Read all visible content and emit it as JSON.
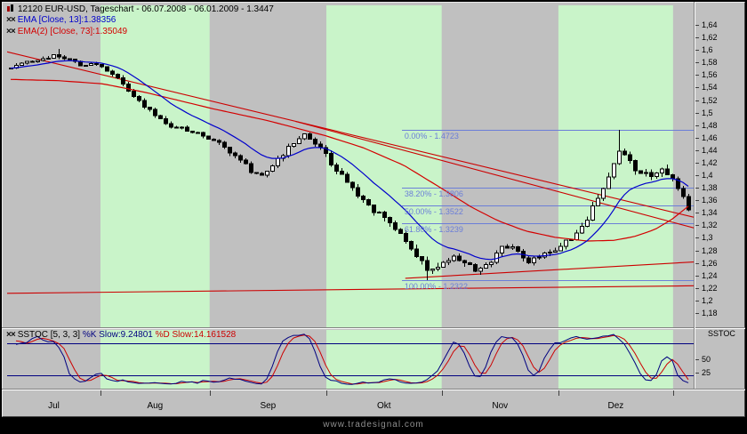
{
  "header": {
    "line1": "12120  EUR-USD, Tageschart - 06.07.2008 - 06.01.2009 - 1.3447",
    "ema1": "EMA [Close, 13]:1.38356",
    "ema2": "EMA(2) [Close, 73]:1.35049"
  },
  "stoch_header": {
    "name": "SSTOC [5, 3, 3] ",
    "k": "%K Slow:9.24801 ",
    "d": "%D Slow:14.161528"
  },
  "icons": {
    "indicator_glyph": "××"
  },
  "price_axis": {
    "top_value": 1.64,
    "step": 0.02,
    "labels": [
      "1,64",
      "1,62",
      "1,6",
      "1,58",
      "1,56",
      "1,54",
      "1,52",
      "1,5",
      "1,48",
      "1,46",
      "1,44",
      "1,42",
      "1,4",
      "1,38",
      "1,36",
      "1,34",
      "1,32",
      "1,3",
      "1,28",
      "1,26",
      "1,24",
      "1,22",
      "1,2",
      "1,18"
    ]
  },
  "stoch_axis": {
    "title": "SSTOC",
    "labels": [
      {
        "text": "50",
        "value": 50
      },
      {
        "text": "25",
        "value": 25
      }
    ]
  },
  "months": [
    "Jul",
    "Aug",
    "Sep",
    "Okt",
    "Nov",
    "Dez"
  ],
  "watermark": "www.tradesignal.com",
  "colors": {
    "bg": "#c0c0c0",
    "band_green": "#c9f4c9",
    "ema_fast": "#0000cc",
    "ema_slow": "#d40000",
    "trend": "#cc0000",
    "fib": "#6b7ed8",
    "stoch_k": "#000080",
    "stoch_d": "#cc0000",
    "candle_up": "#ffffff",
    "candle_down": "#000000",
    "text": "#000000",
    "watermark": "#8f8f8f"
  },
  "chart_data": {
    "type": "candlestick",
    "instrument": "EUR-USD",
    "timeframe": "Tageschart",
    "period": "06.07.2008 - 06.01.2009",
    "last_close": 1.3447,
    "ylim": [
      1.17,
      1.655
    ],
    "candle_count": 128,
    "price_path": [
      [
        0,
        1.571
      ],
      [
        0.016,
        1.576
      ],
      [
        0.035,
        1.584
      ],
      [
        0.054,
        1.589
      ],
      [
        0.07,
        1.592
      ],
      [
        0.087,
        1.583
      ],
      [
        0.106,
        1.576
      ],
      [
        0.126,
        1.578
      ],
      [
        0.136,
        1.572
      ],
      [
        0.158,
        1.556
      ],
      [
        0.177,
        1.532
      ],
      [
        0.197,
        1.507
      ],
      [
        0.216,
        1.496
      ],
      [
        0.236,
        1.478
      ],
      [
        0.255,
        1.473
      ],
      [
        0.275,
        1.468
      ],
      [
        0.295,
        1.458
      ],
      [
        0.313,
        1.446
      ],
      [
        0.333,
        1.428
      ],
      [
        0.352,
        1.41
      ],
      [
        0.368,
        1.396
      ],
      [
        0.385,
        1.413
      ],
      [
        0.401,
        1.434
      ],
      [
        0.417,
        1.452
      ],
      [
        0.433,
        1.466
      ],
      [
        0.449,
        1.449
      ],
      [
        0.465,
        1.431
      ],
      [
        0.482,
        1.408
      ],
      [
        0.497,
        1.386
      ],
      [
        0.514,
        1.362
      ],
      [
        0.531,
        1.347
      ],
      [
        0.547,
        1.339
      ],
      [
        0.562,
        1.322
      ],
      [
        0.579,
        1.297
      ],
      [
        0.596,
        1.272
      ],
      [
        0.611,
        1.252
      ],
      [
        0.624,
        1.249
      ],
      [
        0.633,
        1.259
      ],
      [
        0.65,
        1.273
      ],
      [
        0.666,
        1.262
      ],
      [
        0.683,
        1.249
      ],
      [
        0.699,
        1.256
      ],
      [
        0.715,
        1.271
      ],
      [
        0.731,
        1.289
      ],
      [
        0.747,
        1.276
      ],
      [
        0.764,
        1.263
      ],
      [
        0.78,
        1.268
      ],
      [
        0.803,
        1.283
      ],
      [
        0.819,
        1.293
      ],
      [
        0.834,
        1.306
      ],
      [
        0.851,
        1.331
      ],
      [
        0.868,
        1.369
      ],
      [
        0.883,
        1.401
      ],
      [
        0.896,
        1.443
      ],
      [
        0.909,
        1.431
      ],
      [
        0.922,
        1.406
      ],
      [
        0.935,
        1.399
      ],
      [
        0.948,
        1.403
      ],
      [
        0.964,
        1.408
      ],
      [
        0.977,
        1.396
      ],
      [
        0.987,
        1.373
      ],
      [
        1,
        1.3447
      ]
    ],
    "volatility_path": [
      [
        0,
        0.0035
      ],
      [
        0.25,
        0.004
      ],
      [
        0.42,
        0.005
      ],
      [
        0.52,
        0.0065
      ],
      [
        0.64,
        0.0075
      ],
      [
        0.75,
        0.0055
      ],
      [
        0.86,
        0.0065
      ],
      [
        0.95,
        0.0075
      ],
      [
        1,
        0.006
      ]
    ],
    "wick_spikes": [
      {
        "f": 0.068,
        "high": 1.6015
      },
      {
        "f": 0.615,
        "low": 1.2322
      },
      {
        "f": 0.896,
        "high": 1.4723
      }
    ],
    "indicators": [
      {
        "name": "EMA",
        "params": "Close, 13",
        "last": 1.38356,
        "color_key": "ema_fast",
        "derive": "ema",
        "period": 13
      },
      {
        "name": "EMA(2)",
        "params": "Close, 73",
        "last": 1.35049,
        "color_key": "ema_slow",
        "path": [
          [
            0,
            1.553
          ],
          [
            0.07,
            1.551
          ],
          [
            0.136,
            1.546
          ],
          [
            0.2,
            1.532
          ],
          [
            0.295,
            1.507
          ],
          [
            0.38,
            1.487
          ],
          [
            0.465,
            1.463
          ],
          [
            0.52,
            1.444
          ],
          [
            0.58,
            1.416
          ],
          [
            0.633,
            1.381
          ],
          [
            0.68,
            1.349
          ],
          [
            0.72,
            1.327
          ],
          [
            0.76,
            1.311
          ],
          [
            0.803,
            1.301
          ],
          [
            0.85,
            1.295
          ],
          [
            0.89,
            1.296
          ],
          [
            0.92,
            1.302
          ],
          [
            0.95,
            1.313
          ],
          [
            0.975,
            1.329
          ],
          [
            1,
            1.35049
          ]
        ]
      }
    ],
    "fibonacci": {
      "x_start_frac": 0.575,
      "levels": [
        {
          "label": "0.00% - 1.4723",
          "price": 1.4723
        },
        {
          "label": "38.20% - 1.3806",
          "price": 1.3806
        },
        {
          "label": "50.00% - 1.3522",
          "price": 1.3522
        },
        {
          "label": "61.80% - 1.3239",
          "price": 1.3239
        },
        {
          "label": "100.00% - 1.2322",
          "price": 1.2322
        }
      ]
    },
    "trendlines": [
      {
        "f1": 0,
        "p1": 1.597,
        "f2": 1,
        "p2": 1.333
      },
      {
        "f1": 0.42,
        "p1": 1.486,
        "f2": 1,
        "p2": 1.316
      },
      {
        "f1": 0,
        "p1": 1.2115,
        "f2": 1,
        "p2": 1.2235
      },
      {
        "f1": 0.58,
        "p1": 1.2355,
        "f2": 1,
        "p2": 1.2615
      }
    ],
    "month_bounds_frac": [
      0,
      0.136,
      0.295,
      0.465,
      0.633,
      0.803,
      0.97,
      1
    ],
    "green_band_months": [
      1,
      3,
      5
    ],
    "stochastic": {
      "name": "SSTOC",
      "params": [
        5,
        3,
        3
      ],
      "k_last": 9.24801,
      "d_last": 14.161528,
      "bands": [
        80,
        20
      ],
      "range": [
        0,
        100
      ]
    }
  }
}
